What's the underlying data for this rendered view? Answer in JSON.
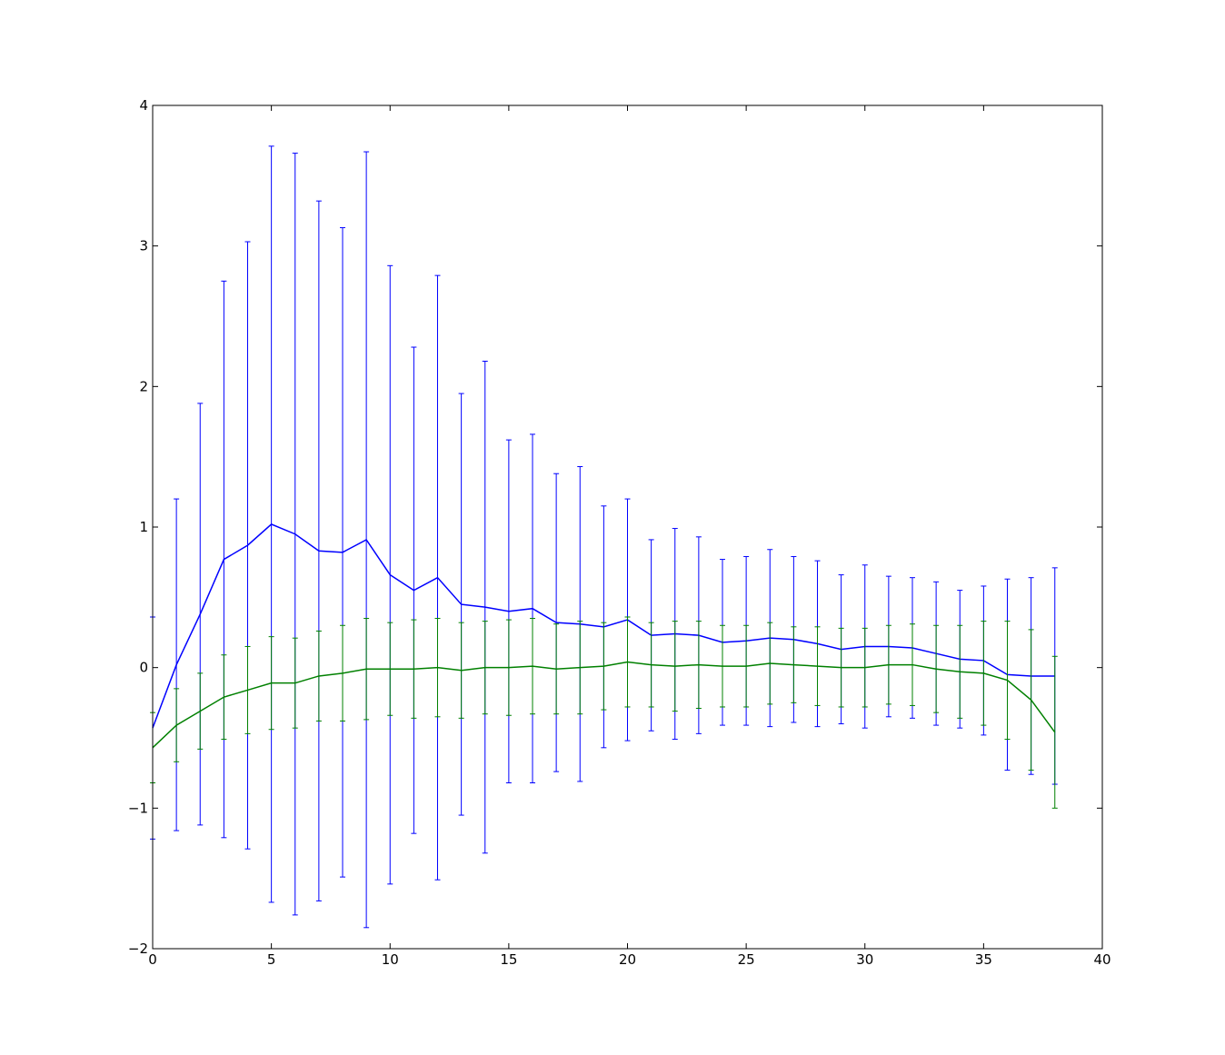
{
  "chart_data": {
    "type": "errorbar",
    "x": [
      0,
      1,
      2,
      3,
      4,
      5,
      6,
      7,
      8,
      9,
      10,
      11,
      12,
      13,
      14,
      15,
      16,
      17,
      18,
      19,
      20,
      21,
      22,
      23,
      24,
      25,
      26,
      27,
      28,
      29,
      30,
      31,
      32,
      33,
      34,
      35,
      36,
      37,
      38
    ],
    "series": [
      {
        "color": "#0000ff",
        "values": [
          -0.43,
          0.02,
          0.38,
          0.77,
          0.87,
          1.02,
          0.95,
          0.83,
          0.82,
          0.91,
          0.66,
          0.55,
          0.64,
          0.45,
          0.43,
          0.4,
          0.42,
          0.32,
          0.31,
          0.29,
          0.34,
          0.23,
          0.24,
          0.23,
          0.18,
          0.19,
          0.21,
          0.2,
          0.17,
          0.13,
          0.15,
          0.15,
          0.14,
          0.1,
          0.06,
          0.05,
          -0.05,
          -0.06,
          -0.06
        ],
        "errors": [
          0.79,
          1.18,
          1.5,
          1.98,
          2.16,
          2.69,
          2.71,
          2.49,
          2.31,
          2.76,
          2.2,
          1.73,
          2.15,
          1.5,
          1.75,
          1.22,
          1.24,
          1.06,
          1.12,
          0.86,
          0.86,
          0.68,
          0.75,
          0.7,
          0.59,
          0.6,
          0.63,
          0.59,
          0.59,
          0.53,
          0.58,
          0.5,
          0.5,
          0.51,
          0.49,
          0.53,
          0.68,
          0.7,
          0.77
        ]
      },
      {
        "color": "#008000",
        "values": [
          -0.57,
          -0.41,
          -0.31,
          -0.21,
          -0.16,
          -0.11,
          -0.11,
          -0.06,
          -0.04,
          -0.01,
          -0.01,
          -0.01,
          0.0,
          -0.02,
          0.0,
          0.0,
          0.01,
          -0.01,
          0.0,
          0.01,
          0.04,
          0.02,
          0.01,
          0.02,
          0.01,
          0.01,
          0.03,
          0.02,
          0.01,
          0.0,
          0.0,
          0.02,
          0.02,
          -0.01,
          -0.03,
          -0.04,
          -0.09,
          -0.23,
          -0.46
        ],
        "errors": [
          0.25,
          0.26,
          0.27,
          0.3,
          0.31,
          0.33,
          0.32,
          0.32,
          0.34,
          0.36,
          0.33,
          0.35,
          0.35,
          0.34,
          0.33,
          0.34,
          0.34,
          0.32,
          0.33,
          0.31,
          0.32,
          0.3,
          0.32,
          0.31,
          0.29,
          0.29,
          0.29,
          0.27,
          0.28,
          0.28,
          0.28,
          0.28,
          0.29,
          0.31,
          0.33,
          0.37,
          0.42,
          0.5,
          0.54
        ]
      }
    ],
    "xlim": [
      0,
      40
    ],
    "xticks": [
      0,
      5,
      10,
      15,
      20,
      25,
      30,
      35,
      40
    ],
    "ylim": [
      -2,
      4
    ],
    "yticks": [
      {
        "value": -2,
        "label": "−2"
      },
      {
        "value": -1,
        "label": "−1"
      },
      0,
      1,
      2,
      3,
      4
    ],
    "grid": false
  }
}
